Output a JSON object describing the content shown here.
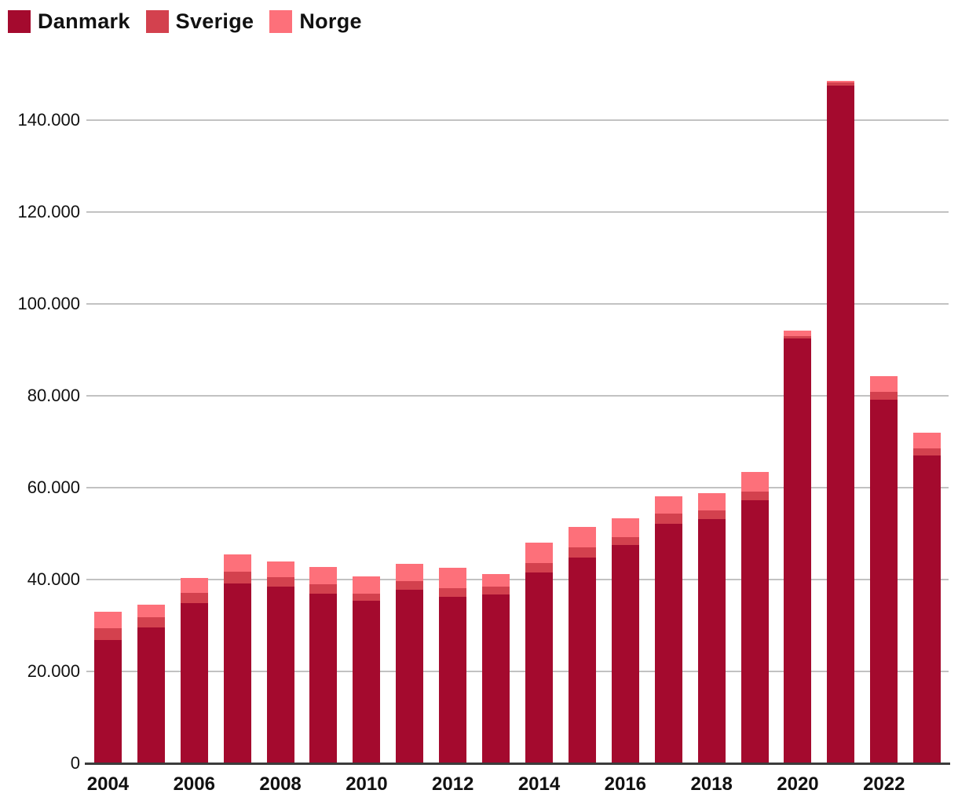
{
  "legend": {
    "items": [
      {
        "label": "Danmark",
        "color": "#a40a2e"
      },
      {
        "label": "Sverige",
        "color": "#d3414e"
      },
      {
        "label": "Norge",
        "color": "#fd707a"
      }
    ]
  },
  "colors": {
    "gridline": "#c2c2c2",
    "axis": "#3b3b3b",
    "text": "#111111",
    "background": "#ffffff"
  },
  "chart_data": {
    "type": "bar",
    "stacked": true,
    "title": "",
    "xlabel": "",
    "ylabel": "",
    "grid": true,
    "legend_position": "top-left",
    "ylim": [
      0,
      150000
    ],
    "yticks": [
      0,
      20000,
      40000,
      60000,
      80000,
      100000,
      120000,
      140000
    ],
    "ytick_labels": [
      "0",
      "20.000",
      "40.000",
      "60.000",
      "80.000",
      "100.000",
      "120.000",
      "140.000"
    ],
    "categories": [
      2004,
      2005,
      2006,
      2007,
      2008,
      2009,
      2010,
      2011,
      2012,
      2013,
      2014,
      2015,
      2016,
      2017,
      2018,
      2019,
      2020,
      2021,
      2022,
      2023
    ],
    "xtick_labels": [
      "2004",
      "2006",
      "2008",
      "2010",
      "2012",
      "2014",
      "2016",
      "2018",
      "2020",
      "2022"
    ],
    "series": [
      {
        "name": "Danmark",
        "color": "#a40a2e",
        "values": [
          26600,
          29400,
          34700,
          38900,
          38200,
          36700,
          35200,
          37600,
          36000,
          36600,
          41300,
          44600,
          47300,
          51900,
          53000,
          57000,
          92200,
          147300,
          79000,
          66800
        ]
      },
      {
        "name": "Sverige",
        "color": "#d3414e",
        "values": [
          2600,
          2200,
          2200,
          2600,
          2200,
          2100,
          1500,
          1900,
          1900,
          1700,
          2100,
          2200,
          1700,
          2200,
          1800,
          1900,
          500,
          700,
          1700,
          1500
        ]
      },
      {
        "name": "Norge",
        "color": "#fd707a",
        "values": [
          3600,
          2700,
          3300,
          3800,
          3400,
          3800,
          3800,
          3800,
          4400,
          2700,
          4400,
          4400,
          4100,
          3900,
          3900,
          4300,
          1300,
          300,
          3400,
          3500
        ]
      }
    ]
  }
}
